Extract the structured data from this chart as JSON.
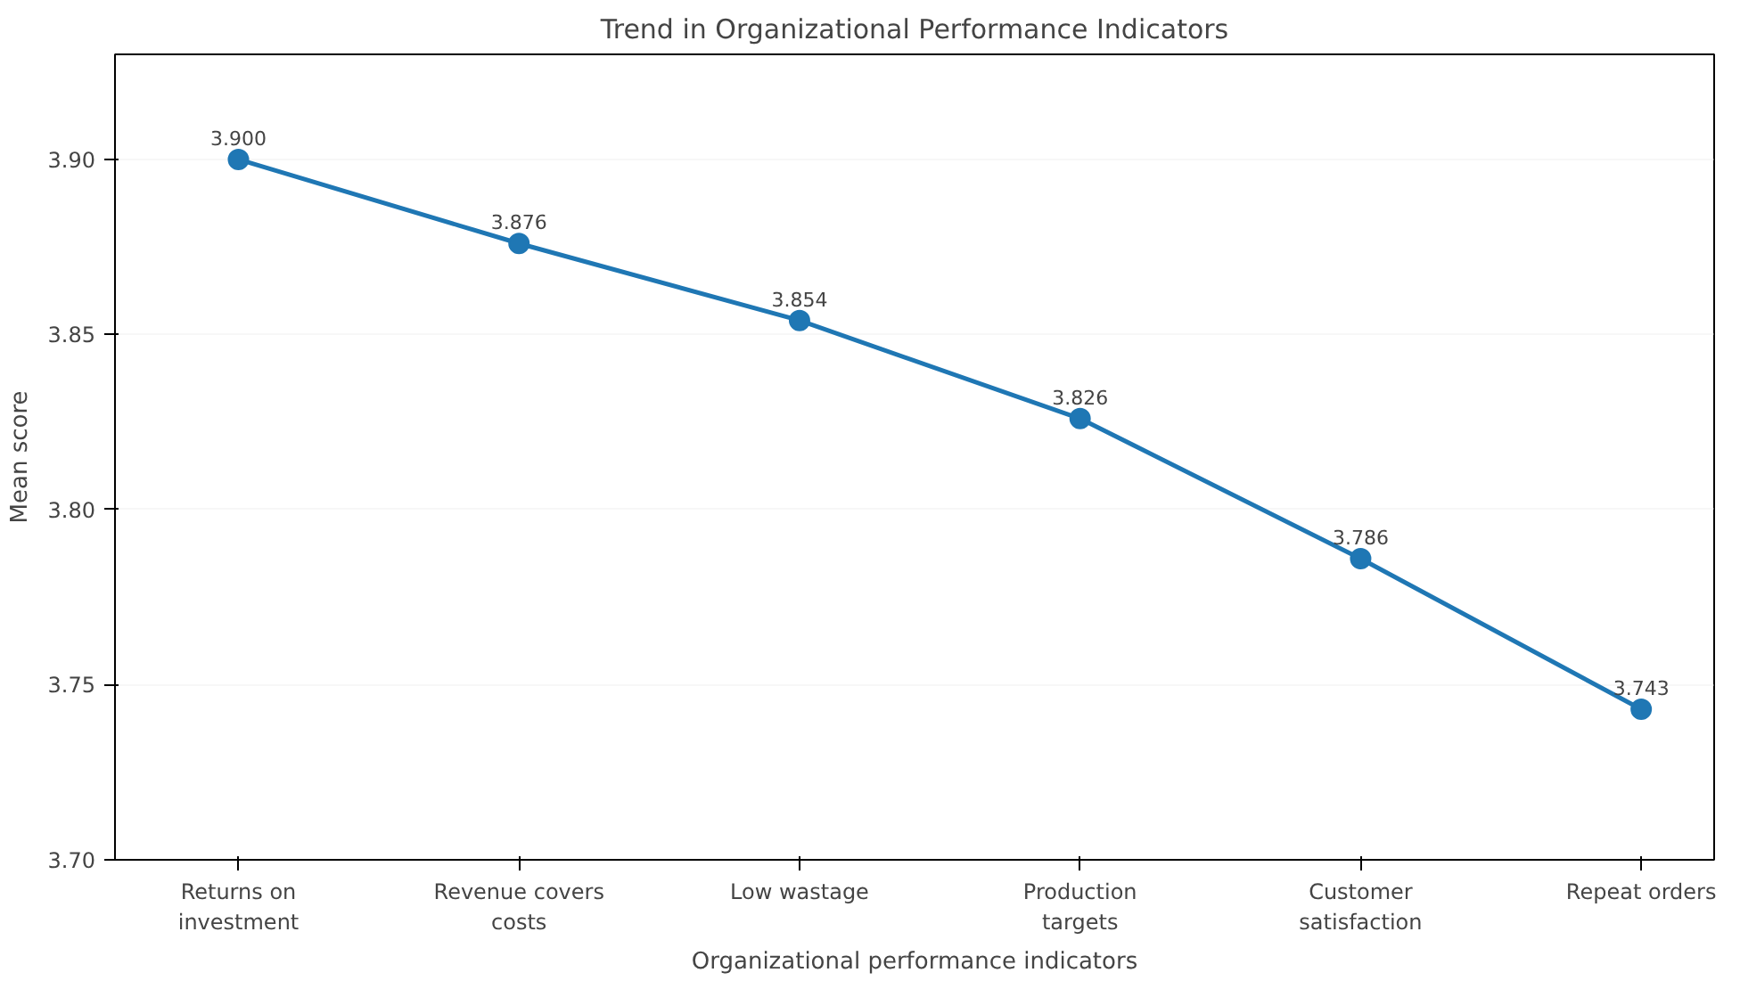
{
  "chart_data": {
    "type": "line",
    "title": "Trend in Organizational Performance Indicators",
    "xlabel": "Organizational performance indicators",
    "ylabel": "Mean score",
    "categories": [
      "Returns on\ninvestment",
      "Revenue covers\ncosts",
      "Low wastage",
      "Production\ntargets",
      "Customer\nsatisfaction",
      "Repeat orders"
    ],
    "series": [
      {
        "color": "#1f77b4",
        "values": [
          3.9,
          3.876,
          3.854,
          3.826,
          3.786,
          3.743
        ]
      }
    ],
    "value_labels": [
      "3.900",
      "3.876",
      "3.854",
      "3.826",
      "3.786",
      "3.743"
    ],
    "ylim": [
      3.7,
      3.93
    ],
    "yticks": [
      {
        "value": 3.7,
        "label": "3.70"
      },
      {
        "value": 3.75,
        "label": "3.75"
      },
      {
        "value": 3.8,
        "label": "3.80"
      },
      {
        "value": 3.85,
        "label": "3.85"
      },
      {
        "value": 3.9,
        "label": "3.90"
      }
    ],
    "grid": "y",
    "marker": "circle",
    "line_style": "solid"
  }
}
